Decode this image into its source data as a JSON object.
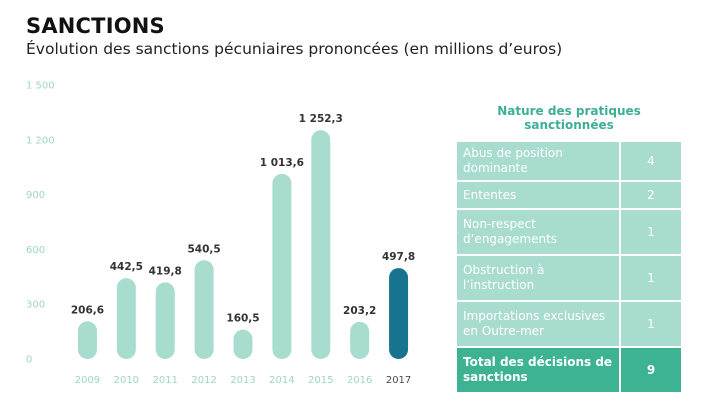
{
  "header": {
    "title": "SANCTIONS",
    "subtitle": "Évolution des sanctions pécuniaires prononcées (en millions d’euros)"
  },
  "colors": {
    "bar": "#a8dccf",
    "bar_highlight": "#17748e",
    "axis_text": "#9fd4c8",
    "table_row": "#a8dccf",
    "table_total": "#3db394",
    "panel_title": "#3fae96"
  },
  "chart_data": {
    "type": "bar",
    "title": "Évolution des sanctions pécuniaires prononcées (en millions d’euros)",
    "categories": [
      "2009",
      "2010",
      "2011",
      "2012",
      "2013",
      "2014",
      "2015",
      "2016",
      "2017"
    ],
    "values": [
      206.6,
      442.5,
      419.8,
      540.5,
      160.5,
      1013.6,
      1252.3,
      203.2,
      497.8
    ],
    "value_labels": [
      "206,6",
      "442,5",
      "419,8",
      "540,5",
      "160,5",
      "1 013,6",
      "1 252,3",
      "203,2",
      "497,8"
    ],
    "highlight_index": 8,
    "ylim": [
      0,
      1500
    ],
    "yticks": [
      0,
      300,
      600,
      900,
      1200,
      1500
    ],
    "ytick_labels": [
      "0",
      "300",
      "600",
      "900",
      "1 200",
      "1 500"
    ],
    "grid": false,
    "legend": "none"
  },
  "panel": {
    "title": "Nature des pratiques sanctionnées",
    "rows": [
      {
        "label": "Abus de position dominante",
        "count": "4"
      },
      {
        "label": "Ententes",
        "count": "2"
      },
      {
        "label": "Non-respect d’engagements",
        "count": "1"
      },
      {
        "label": "Obstruction à l’instruction",
        "count": "1"
      },
      {
        "label": "Importations exclusives en Outre-mer",
        "count": "1"
      }
    ],
    "total": {
      "label": "Total des décisions de sanctions",
      "count": "9"
    }
  }
}
